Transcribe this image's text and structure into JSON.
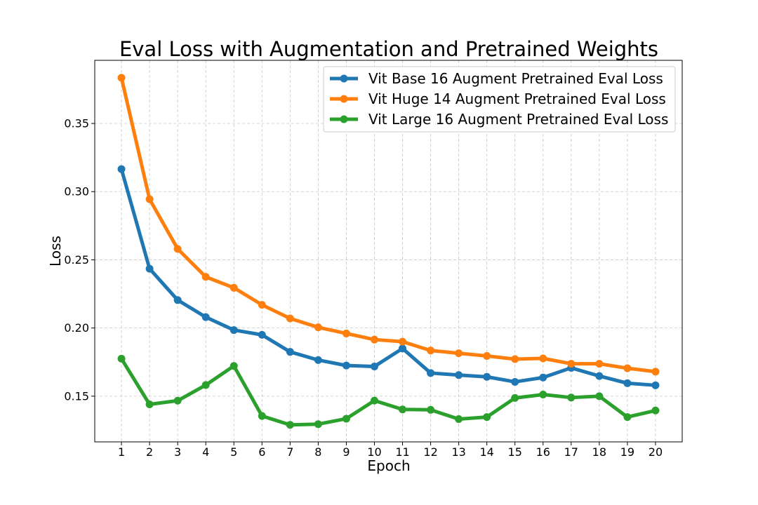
{
  "chart_data": {
    "type": "line",
    "title": "Eval Loss with Augmentation and Pretrained Weights",
    "xlabel": "Epoch",
    "ylabel": "Loss",
    "x": [
      1,
      2,
      3,
      4,
      5,
      6,
      7,
      8,
      9,
      10,
      11,
      12,
      13,
      14,
      15,
      16,
      17,
      18,
      19,
      20
    ],
    "xlim": [
      0.05,
      20.95
    ],
    "ylim": [
      0.1165,
      0.3963
    ],
    "yticks": [
      0.15,
      0.2,
      0.25,
      0.3,
      0.35
    ],
    "ytick_labels": [
      "0.15",
      "0.20",
      "0.25",
      "0.30",
      "0.35"
    ],
    "grid": true,
    "legend_position": "top-right",
    "series": [
      {
        "name": "Vit Base 16 Augment Pretrained Eval Loss",
        "color": "#1f77b4",
        "values": [
          0.3165,
          0.2435,
          0.2205,
          0.208,
          0.1985,
          0.195,
          0.1825,
          0.1765,
          0.1725,
          0.1718,
          0.185,
          0.167,
          0.1655,
          0.1642,
          0.1605,
          0.1637,
          0.1708,
          0.1648,
          0.1595,
          0.158
        ]
      },
      {
        "name": "Vit Huge 14 Augment Pretrained Eval Loss",
        "color": "#ff7f0e",
        "values": [
          0.3835,
          0.2945,
          0.258,
          0.2375,
          0.2295,
          0.217,
          0.207,
          0.2005,
          0.196,
          0.1915,
          0.19,
          0.1835,
          0.1815,
          0.1795,
          0.1772,
          0.1777,
          0.1738,
          0.1738,
          0.1705,
          0.168
        ]
      },
      {
        "name": "Vit Large 16 Augment Pretrained Eval Loss",
        "color": "#2ca02c",
        "values": [
          0.1775,
          0.144,
          0.1467,
          0.1582,
          0.1722,
          0.1355,
          0.129,
          0.1295,
          0.1335,
          0.1468,
          0.1403,
          0.14,
          0.1332,
          0.1347,
          0.1487,
          0.1512,
          0.149,
          0.15,
          0.1347,
          0.1395
        ]
      }
    ]
  }
}
